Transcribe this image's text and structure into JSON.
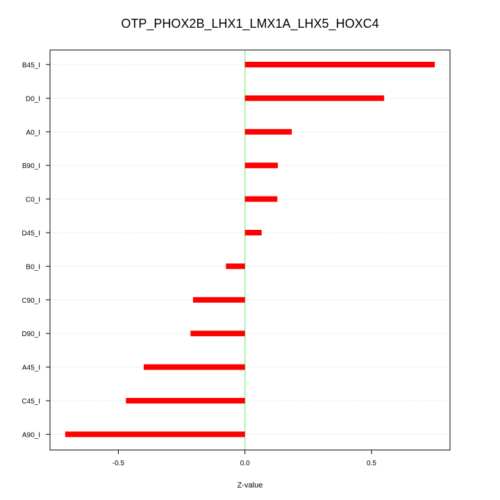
{
  "chart_data": {
    "type": "bar",
    "orientation": "horizontal",
    "title": "OTP_PHOX2B_LHX1_LMX1A_LHX5_HOXC4",
    "xlabel": "Z-value",
    "ylabel": "",
    "categories": [
      "B45_I",
      "D0_I",
      "A0_I",
      "B90_I",
      "C0_I",
      "D45_I",
      "B0_I",
      "C90_I",
      "D90_I",
      "A45_I",
      "C45_I",
      "A90_I"
    ],
    "values": [
      0.75,
      0.55,
      0.185,
      0.13,
      0.128,
      0.066,
      -0.075,
      -0.205,
      -0.215,
      -0.4,
      -0.47,
      -0.71
    ],
    "xlim": [
      -0.77,
      0.81
    ],
    "xticks": [
      -0.5,
      0.0,
      0.5
    ],
    "xtick_labels": [
      "-0.5",
      "0.0",
      "0.5"
    ],
    "grid": "horizontal dotted",
    "bar_color": "#ff0000",
    "zero_line_color": "#90ee90"
  }
}
